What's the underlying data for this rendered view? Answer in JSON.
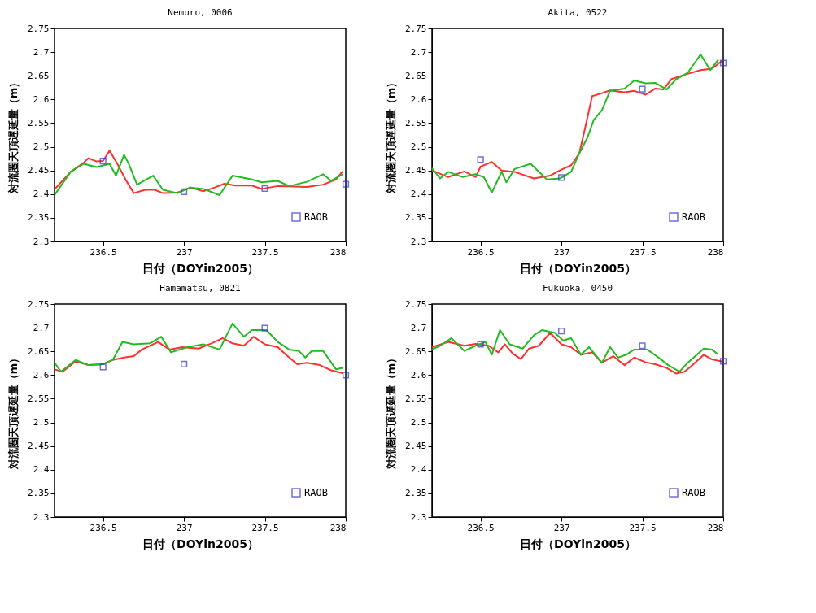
{
  "chart_data": [
    {
      "type": "line",
      "title": "Nemuro, 0006",
      "xlabel": "日付（DOYin2005）",
      "ylabel": "対流圏天頂遅延量（m）",
      "xlim": [
        236.2,
        238
      ],
      "ylim": [
        2.3,
        2.75
      ],
      "xticks": [
        236.5,
        237,
        237.5,
        238
      ],
      "yticks": [
        2.3,
        2.35,
        2.4,
        2.45,
        2.5,
        2.55,
        2.6,
        2.65,
        2.7,
        2.75
      ],
      "legend": "bottom right",
      "grid": false,
      "series": [
        {
          "type": "line",
          "color": "#ff3030",
          "x": [
            236.2,
            236.3,
            236.38,
            236.41,
            236.46,
            236.5,
            236.54,
            236.59,
            236.64,
            236.69,
            236.76,
            236.82,
            236.87,
            236.96,
            237.04,
            237.12,
            237.19,
            237.25,
            237.32,
            237.42,
            237.48,
            237.58,
            237.68,
            237.76,
            237.86,
            237.94,
            237.98
          ],
          "values": [
            2.41,
            2.447,
            2.466,
            2.476,
            2.469,
            2.47,
            2.492,
            2.463,
            2.43,
            2.402,
            2.409,
            2.409,
            2.402,
            2.403,
            2.414,
            2.406,
            2.414,
            2.422,
            2.418,
            2.418,
            2.411,
            2.417,
            2.416,
            2.415,
            2.42,
            2.431,
            2.448
          ]
        },
        {
          "type": "line",
          "color": "#22bb22",
          "x": [
            236.2,
            236.3,
            236.38,
            236.46,
            236.54,
            236.58,
            236.63,
            236.66,
            236.71,
            236.81,
            236.87,
            236.96,
            237.04,
            237.12,
            237.22,
            237.3,
            237.42,
            237.48,
            237.58,
            237.65,
            237.76,
            237.86,
            237.91,
            237.98
          ],
          "values": [
            2.398,
            2.447,
            2.464,
            2.457,
            2.464,
            2.439,
            2.483,
            2.463,
            2.42,
            2.439,
            2.409,
            2.402,
            2.414,
            2.411,
            2.398,
            2.439,
            2.431,
            2.425,
            2.428,
            2.417,
            2.426,
            2.442,
            2.428,
            2.442
          ]
        },
        {
          "type": "scatter",
          "name": "RAOB",
          "color": "#3333cc",
          "marker": "square",
          "x": [
            236.5,
            237,
            237.5,
            238
          ],
          "values": [
            2.47,
            2.405,
            2.412,
            2.421
          ]
        }
      ]
    },
    {
      "type": "line",
      "title": "Akita, 0522",
      "xlabel": "日付（DOYin2005）",
      "ylabel": "対流圏天頂遅延量（m）",
      "xlim": [
        236.2,
        238
      ],
      "ylim": [
        2.3,
        2.75
      ],
      "xticks": [
        236.5,
        237,
        237.5,
        238
      ],
      "yticks": [
        2.3,
        2.35,
        2.4,
        2.45,
        2.5,
        2.55,
        2.6,
        2.65,
        2.7,
        2.75
      ],
      "legend": "bottom right",
      "grid": false,
      "series": [
        {
          "type": "line",
          "color": "#ff3030",
          "x": [
            236.2,
            236.3,
            236.4,
            236.47,
            236.5,
            236.57,
            236.63,
            236.71,
            236.83,
            236.93,
            236.99,
            237.06,
            237.11,
            237.14,
            237.19,
            237.24,
            237.3,
            237.39,
            237.45,
            237.52,
            237.58,
            237.63,
            237.68,
            237.78,
            237.86,
            237.93,
            237.99
          ],
          "values": [
            2.45,
            2.436,
            2.448,
            2.436,
            2.458,
            2.468,
            2.45,
            2.447,
            2.433,
            2.439,
            2.45,
            2.461,
            2.486,
            2.53,
            2.607,
            2.612,
            2.619,
            2.615,
            2.618,
            2.61,
            2.623,
            2.621,
            2.643,
            2.654,
            2.662,
            2.665,
            2.681
          ]
        },
        {
          "type": "line",
          "color": "#22bb22",
          "x": [
            236.2,
            236.25,
            236.3,
            236.39,
            236.47,
            236.52,
            236.57,
            236.63,
            236.66,
            236.71,
            236.81,
            236.91,
            236.99,
            237.06,
            237.11,
            237.16,
            237.2,
            237.25,
            237.3,
            237.39,
            237.45,
            237.52,
            237.58,
            237.65,
            237.71,
            237.78,
            237.86,
            237.92,
            237.97
          ],
          "values": [
            2.455,
            2.433,
            2.447,
            2.436,
            2.442,
            2.436,
            2.403,
            2.447,
            2.425,
            2.453,
            2.464,
            2.431,
            2.433,
            2.447,
            2.486,
            2.519,
            2.557,
            2.577,
            2.618,
            2.623,
            2.64,
            2.634,
            2.635,
            2.621,
            2.643,
            2.656,
            2.695,
            2.662,
            2.684
          ]
        },
        {
          "type": "scatter",
          "name": "RAOB",
          "color": "#3333cc",
          "marker": "square",
          "x": [
            236.5,
            237,
            237.5,
            238
          ],
          "values": [
            2.473,
            2.435,
            2.622,
            2.677
          ]
        }
      ]
    },
    {
      "type": "line",
      "title": "Hamamatsu, 0821",
      "xlabel": "日付（DOYin2005）",
      "ylabel": "対流圏天頂遅延量（m）",
      "xlim": [
        236.2,
        238
      ],
      "ylim": [
        2.3,
        2.75
      ],
      "xticks": [
        236.5,
        237,
        237.5,
        238
      ],
      "yticks": [
        2.3,
        2.35,
        2.4,
        2.45,
        2.5,
        2.55,
        2.6,
        2.65,
        2.7,
        2.75
      ],
      "legend": "bottom right",
      "grid": false,
      "series": [
        {
          "type": "line",
          "color": "#ff3030",
          "x": [
            236.2,
            236.25,
            236.33,
            236.41,
            236.5,
            236.56,
            236.63,
            236.69,
            236.74,
            236.84,
            236.91,
            236.99,
            237.09,
            237.17,
            237.24,
            237.3,
            237.37,
            237.43,
            237.5,
            237.58,
            237.63,
            237.7,
            237.76,
            237.84,
            237.91,
            237.98
          ],
          "values": [
            2.612,
            2.607,
            2.629,
            2.621,
            2.623,
            2.632,
            2.637,
            2.64,
            2.654,
            2.67,
            2.654,
            2.659,
            2.656,
            2.667,
            2.678,
            2.667,
            2.662,
            2.681,
            2.665,
            2.659,
            2.643,
            2.623,
            2.626,
            2.621,
            2.61,
            2.604
          ]
        },
        {
          "type": "line",
          "color": "#22bb22",
          "x": [
            236.2,
            236.24,
            236.33,
            236.41,
            236.5,
            236.56,
            236.62,
            236.69,
            236.79,
            236.86,
            236.92,
            237.02,
            237.12,
            237.22,
            237.3,
            237.37,
            237.42,
            237.51,
            237.58,
            237.65,
            237.71,
            237.75,
            237.79,
            237.86,
            237.94,
            237.98
          ],
          "values": [
            2.626,
            2.607,
            2.632,
            2.621,
            2.623,
            2.632,
            2.67,
            2.665,
            2.667,
            2.681,
            2.648,
            2.659,
            2.665,
            2.654,
            2.709,
            2.681,
            2.695,
            2.695,
            2.67,
            2.654,
            2.651,
            2.637,
            2.651,
            2.651,
            2.612,
            2.615
          ]
        },
        {
          "type": "scatter",
          "name": "RAOB",
          "color": "#3333cc",
          "marker": "square",
          "x": [
            236.5,
            237,
            237.5,
            238
          ],
          "values": [
            2.617,
            2.623,
            2.699,
            2.6
          ]
        }
      ]
    },
    {
      "type": "line",
      "title": "Fukuoka, 0450",
      "xlabel": "日付（DOYin2005）",
      "ylabel": "対流圏天頂遅延量（m）",
      "xlim": [
        236.2,
        238
      ],
      "ylim": [
        2.3,
        2.75
      ],
      "xticks": [
        236.5,
        237,
        237.5,
        238
      ],
      "yticks": [
        2.3,
        2.35,
        2.4,
        2.45,
        2.5,
        2.55,
        2.6,
        2.65,
        2.7,
        2.75
      ],
      "legend": "bottom right",
      "grid": false,
      "series": [
        {
          "type": "line",
          "color": "#ff3030",
          "x": [
            236.2,
            236.3,
            236.4,
            236.47,
            236.55,
            236.61,
            236.65,
            236.7,
            236.75,
            236.8,
            236.86,
            236.93,
            237.0,
            237.06,
            237.12,
            237.19,
            237.25,
            237.32,
            237.39,
            237.45,
            237.52,
            237.58,
            237.65,
            237.71,
            237.76,
            237.81,
            237.88,
            237.93,
            237.99
          ],
          "values": [
            2.659,
            2.67,
            2.662,
            2.666,
            2.662,
            2.648,
            2.665,
            2.645,
            2.634,
            2.656,
            2.662,
            2.689,
            2.665,
            2.659,
            2.643,
            2.648,
            2.626,
            2.64,
            2.621,
            2.637,
            2.627,
            2.623,
            2.615,
            2.603,
            2.607,
            2.621,
            2.643,
            2.633,
            2.629
          ]
        },
        {
          "type": "line",
          "color": "#22bb22",
          "x": [
            236.2,
            236.25,
            236.32,
            236.4,
            236.47,
            236.53,
            236.57,
            236.62,
            236.68,
            236.76,
            236.83,
            236.88,
            236.96,
            237.01,
            237.06,
            237.12,
            237.17,
            237.25,
            237.3,
            237.35,
            237.4,
            237.45,
            237.53,
            237.6,
            237.66,
            237.73,
            237.78,
            237.88,
            237.93,
            237.97
          ],
          "values": [
            2.654,
            2.662,
            2.678,
            2.651,
            2.662,
            2.67,
            2.643,
            2.695,
            2.665,
            2.656,
            2.684,
            2.695,
            2.689,
            2.673,
            2.678,
            2.643,
            2.659,
            2.626,
            2.659,
            2.637,
            2.643,
            2.654,
            2.654,
            2.637,
            2.621,
            2.607,
            2.626,
            2.656,
            2.654,
            2.643
          ]
        },
        {
          "type": "scatter",
          "name": "RAOB",
          "color": "#3333cc",
          "marker": "square",
          "x": [
            236.5,
            237,
            237.5,
            238
          ],
          "values": [
            2.665,
            2.693,
            2.662,
            2.629
          ]
        }
      ]
    }
  ]
}
